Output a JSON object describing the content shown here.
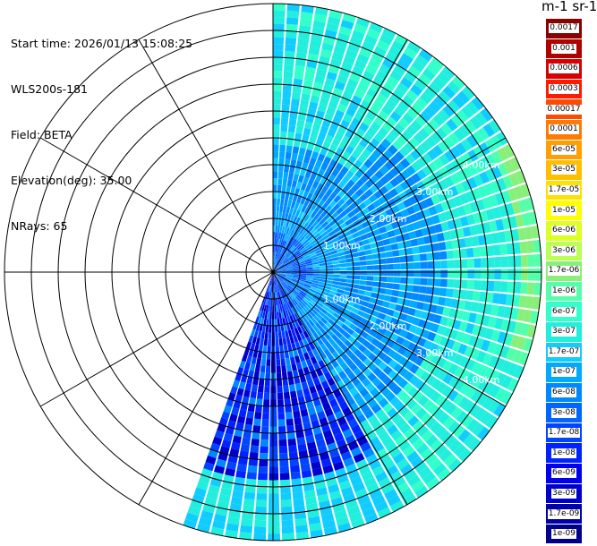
{
  "info": {
    "start_time": "Start time: 2026/01/13 15:08:25",
    "instrument": "WLS200s-181",
    "field": "Field: BETA",
    "elevation": "Elevation(deg): 35.00",
    "nrays": "NRays: 65"
  },
  "colorbar": {
    "unit": "m-1 sr-1",
    "levels": [
      {
        "label": "0.0017",
        "color": "#8b0000"
      },
      {
        "label": "0.001",
        "color": "#b00000"
      },
      {
        "label": "0.0006",
        "color": "#d80000"
      },
      {
        "label": "0.0003",
        "color": "#ff1a00"
      },
      {
        "label": "0.00017",
        "color": "#ff4a00"
      },
      {
        "label": "0.0001",
        "color": "#ff7a00"
      },
      {
        "label": "6e-05",
        "color": "#ff9f00"
      },
      {
        "label": "3e-05",
        "color": "#ffbf00"
      },
      {
        "label": "1.7e-05",
        "color": "#ffe000"
      },
      {
        "label": "1e-05",
        "color": "#ffff00"
      },
      {
        "label": "6e-06",
        "color": "#ddff22"
      },
      {
        "label": "3e-06",
        "color": "#bbff55"
      },
      {
        "label": "1.7e-06",
        "color": "#88f07a"
      },
      {
        "label": "1e-06",
        "color": "#55ffaa"
      },
      {
        "label": "6e-07",
        "color": "#33ffcc"
      },
      {
        "label": "3e-07",
        "color": "#22eedd"
      },
      {
        "label": "1.7e-07",
        "color": "#11ccff"
      },
      {
        "label": "1e-07",
        "color": "#00aaff"
      },
      {
        "label": "6e-08",
        "color": "#0088ff"
      },
      {
        "label": "3e-08",
        "color": "#0066ff"
      },
      {
        "label": "1.7e-08",
        "color": "#0044ff"
      },
      {
        "label": "1e-08",
        "color": "#0022ff"
      },
      {
        "label": "6e-09",
        "color": "#0000ee"
      },
      {
        "label": "3e-09",
        "color": "#0000cc"
      },
      {
        "label": "1.7e-09",
        "color": "#0000aa"
      },
      {
        "label": "1e-09",
        "color": "#000088"
      }
    ]
  },
  "chart_data": {
    "type": "heatmap",
    "projection": "polar PPI",
    "azimuth_range_deg": [
      0,
      200
    ],
    "nrays": 65,
    "range_labels": [
      "1.00km",
      "2.00km",
      "3.00km",
      "4.00km"
    ],
    "range_rings_km": [
      0.5,
      1.0,
      1.5,
      2.0,
      2.5,
      3.0,
      3.5,
      4.0,
      4.5,
      5.0
    ],
    "radial_spokes_deg": [
      0,
      30,
      60,
      90,
      120,
      150,
      180,
      210,
      240,
      270,
      300,
      330
    ],
    "max_range_km": 5.0,
    "dominant_values": {
      "near_range": "6e-08 to 1e-07",
      "far_range": "3e-07 to 6e-07",
      "southern_sector": "1e-09 to 3e-08"
    }
  }
}
